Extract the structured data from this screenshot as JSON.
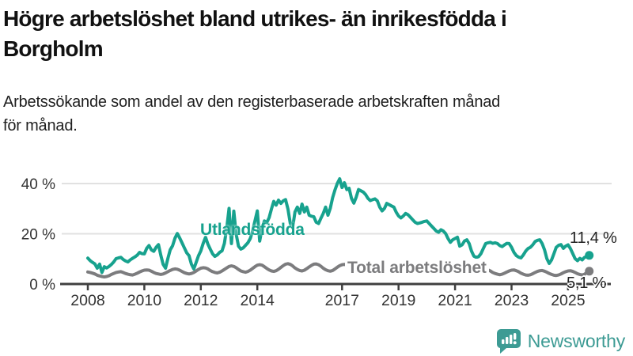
{
  "header": {
    "title_lines": [
      "Högre arbetslöshet bland utrikes- än inrikesfödda i",
      "Borgholm"
    ],
    "subtitle_lines": [
      "Arbetssökande som andel av den registerbaserade arbetskraften månad",
      "för månad."
    ]
  },
  "chart_data": {
    "type": "line",
    "title": "Högre arbetslöshet bland utrikes- än inrikesfödda i Borgholm",
    "subtitle": "Arbetssökande som andel av den registerbaserade arbetskraften månad för månad.",
    "x_unit": "month",
    "x_start_year": 2008,
    "x_end": "2025-10",
    "xlim": [
      2008,
      2026
    ],
    "ylim": [
      0,
      45
    ],
    "grid": "horizontal",
    "y_ticks": [
      {
        "v": 0,
        "label": "0 %"
      },
      {
        "v": 20,
        "label": "20 %"
      },
      {
        "v": 40,
        "label": "40 %"
      }
    ],
    "x_ticks": [
      {
        "year": 2008,
        "label": "2008"
      },
      {
        "year": 2010,
        "label": "2010"
      },
      {
        "year": 2012,
        "label": "2012"
      },
      {
        "year": 2014,
        "label": "2014"
      },
      {
        "year": 2017,
        "label": "2017"
      },
      {
        "year": 2019,
        "label": "2019"
      },
      {
        "year": 2021,
        "label": "2021"
      },
      {
        "year": 2023,
        "label": "2023"
      },
      {
        "year": 2025,
        "label": "2025"
      }
    ],
    "series": [
      {
        "name": "Utlandsfödda",
        "color": "#17a28e",
        "end_label": "11,4 %",
        "last_value": 11.4,
        "values": [
          10.3,
          9.3,
          8.6,
          8.0,
          6.3,
          7.9,
          4.6,
          6.9,
          6.4,
          7.0,
          7.8,
          8.8,
          10.1,
          10.4,
          10.6,
          9.8,
          9.2,
          8.8,
          9.6,
          10.2,
          10.8,
          11.5,
          12.6,
          12.1,
          12.0,
          14.2,
          15.3,
          13.6,
          13.0,
          14.6,
          15.7,
          11.5,
          7.8,
          6.3,
          10.2,
          13.6,
          15.2,
          18.2,
          20.1,
          18.4,
          16.4,
          14.4,
          12.4,
          11.3,
          7.9,
          6.0,
          8.6,
          11.2,
          13.2,
          16.2,
          18.6,
          15.9,
          13.9,
          12.0,
          11.0,
          11.6,
          12.6,
          13.2,
          16.2,
          22.1,
          30.1,
          16.1,
          29.0,
          20.0,
          15.1,
          13.9,
          14.4,
          15.4,
          16.4,
          18.1,
          21.2,
          25.1,
          29.1,
          17.1,
          22.2,
          25.1,
          24.4,
          26.4,
          29.9,
          32.9,
          31.4,
          33.4,
          32.1,
          33.1,
          33.6,
          29.9,
          24.1,
          22.4,
          28.7,
          30.6,
          28.1,
          31.8,
          28.7,
          30.6,
          27.4,
          27.0,
          26.8,
          24.6,
          24.1,
          26.1,
          28.1,
          30.6,
          27.4,
          30.1,
          34.4,
          37.5,
          40.1,
          41.9,
          38.4,
          40.3,
          37.6,
          38.1,
          34.1,
          32.2,
          34.6,
          37.6,
          37.1,
          36.6,
          35.6,
          34.1,
          33.2,
          33.6,
          33.9,
          33.1,
          30.6,
          29.1,
          30.1,
          32.1,
          31.6,
          31.1,
          30.6,
          28.6,
          27.1,
          26.3,
          27.1,
          28.1,
          27.6,
          26.6,
          25.6,
          24.6,
          24.1,
          24.3,
          24.6,
          24.9,
          25.1,
          24.1,
          23.1,
          22.1,
          21.1,
          20.6,
          21.6,
          21.1,
          20.1,
          18.1,
          16.6,
          17.6,
          18.1,
          18.6,
          15.1,
          15.6,
          17.1,
          17.6,
          16.1,
          13.1,
          11.1,
          10.6,
          10.9,
          12.1,
          14.1,
          16.1,
          16.4,
          16.6,
          16.2,
          16.4,
          16.1,
          15.3,
          14.9,
          15.6,
          16.2,
          16.1,
          14.6,
          12.6,
          11.3,
          10.7,
          10.4,
          11.6,
          13.1,
          14.1,
          14.6,
          15.6,
          16.9,
          17.4,
          17.6,
          16.1,
          13.6,
          10.1,
          8.2,
          9.6,
          12.1,
          14.6,
          15.4,
          15.7,
          14.2,
          15.1,
          15.6,
          14.1,
          12.1,
          10.1,
          9.3,
          10.2,
          9.6,
          10.6,
          11.0,
          11.4
        ]
      },
      {
        "name": "Total arbetslöshet",
        "color": "#7c7c7e",
        "end_label": "5,1 %",
        "last_value": 5.1,
        "values": [
          4.8,
          4.6,
          4.3,
          4.0,
          3.5,
          3.2,
          3.0,
          2.8,
          3.0,
          3.3,
          3.8,
          4.2,
          4.6,
          4.8,
          4.9,
          4.6,
          4.2,
          3.9,
          3.7,
          3.6,
          3.9,
          4.3,
          4.8,
          5.2,
          5.5,
          5.6,
          5.5,
          5.1,
          4.6,
          4.2,
          4.0,
          3.8,
          4.0,
          4.4,
          4.9,
          5.4,
          5.8,
          6.0,
          5.9,
          5.5,
          5.0,
          4.5,
          4.2,
          4.0,
          4.2,
          4.6,
          5.2,
          5.8,
          6.3,
          6.5,
          6.4,
          6.0,
          5.4,
          4.9,
          4.6,
          4.4,
          4.7,
          5.2,
          5.8,
          6.4,
          7.0,
          7.2,
          7.0,
          6.5,
          5.8,
          5.2,
          4.9,
          4.7,
          5.0,
          5.5,
          6.2,
          6.9,
          7.5,
          7.7,
          7.5,
          6.9,
          6.2,
          5.6,
          5.2,
          5.0,
          5.3,
          5.9,
          6.6,
          7.3,
          7.9,
          8.1,
          7.8,
          7.2,
          6.4,
          5.8,
          5.4,
          5.2,
          5.5,
          6.1,
          6.8,
          7.4,
          7.9,
          8.0,
          7.7,
          7.1,
          6.3,
          5.7,
          5.3,
          5.1,
          5.4,
          6.0,
          6.7,
          7.3,
          7.7,
          7.8,
          7.5,
          6.9,
          6.1,
          5.5,
          5.1,
          4.9,
          5.2,
          5.8,
          6.4,
          7.0,
          7.4,
          7.5,
          7.2,
          6.6,
          5.9,
          5.3,
          4.9,
          4.7,
          5.0,
          5.5,
          6.1,
          6.6,
          7.0,
          7.1,
          6.8,
          6.3,
          5.6,
          5.0,
          4.7,
          4.5,
          4.8,
          5.3,
          5.9,
          6.4,
          6.8,
          6.9,
          6.6,
          6.1,
          5.4,
          4.9,
          4.6,
          4.4,
          4.6,
          5.0,
          5.5,
          6.0,
          6.3,
          6.4,
          6.1,
          5.6,
          5.0,
          4.5,
          4.2,
          4.0,
          4.2,
          4.6,
          5.1,
          5.5,
          5.8,
          5.9,
          5.6,
          5.2,
          4.6,
          4.2,
          3.9,
          3.7,
          3.9,
          4.3,
          4.8,
          5.2,
          5.5,
          5.6,
          5.3,
          4.9,
          4.3,
          3.9,
          3.6,
          3.5,
          3.7,
          4.1,
          4.6,
          5.0,
          5.3,
          5.4,
          5.1,
          4.7,
          4.2,
          3.8,
          3.5,
          3.4,
          3.6,
          4.0,
          4.5,
          4.9,
          5.2,
          5.3,
          5.0,
          4.6,
          4.1,
          3.8,
          3.6,
          3.9,
          4.5,
          5.1
        ]
      }
    ],
    "colors": {
      "grid": "#e1e1e1",
      "axis": "#3f3f3f",
      "tick_text": "#333333"
    }
  },
  "footer": {
    "brand": "Newsworthy",
    "brand_color": "#3d9b94",
    "logo_icon": "bar-chart-speech-bubble-icon"
  }
}
